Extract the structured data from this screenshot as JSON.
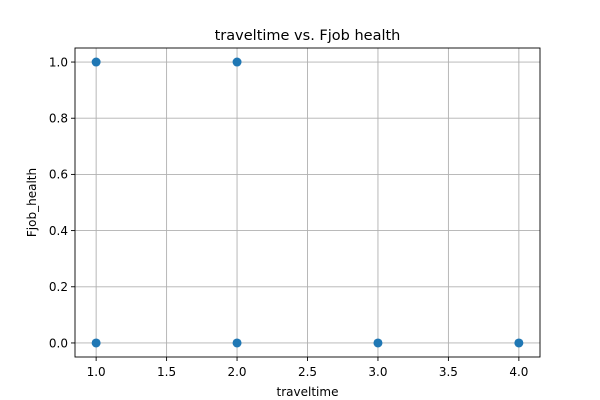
{
  "chart_data": {
    "type": "scatter",
    "title": "traveltime vs. Fjob health",
    "xlabel": "traveltime",
    "ylabel": "Fjob_health",
    "xlim": [
      0.85,
      4.15
    ],
    "ylim": [
      -0.05,
      1.05
    ],
    "xticks": [
      "1.0",
      "1.5",
      "2.0",
      "2.5",
      "3.0",
      "3.5",
      "4.0"
    ],
    "xtick_values": [
      1.0,
      1.5,
      2.0,
      2.5,
      3.0,
      3.5,
      4.0
    ],
    "yticks": [
      "0.0",
      "0.2",
      "0.4",
      "0.6",
      "0.8",
      "1.0"
    ],
    "ytick_values": [
      0.0,
      0.2,
      0.4,
      0.6,
      0.8,
      1.0
    ],
    "grid": true,
    "legend": "none",
    "points": [
      {
        "x": 1,
        "y": 1
      },
      {
        "x": 1,
        "y": 0
      },
      {
        "x": 2,
        "y": 1
      },
      {
        "x": 2,
        "y": 0
      },
      {
        "x": 3,
        "y": 0
      },
      {
        "x": 4,
        "y": 0
      }
    ],
    "colors": {
      "marker": "#1f77b4",
      "grid": "#b0b0b0",
      "axes": "#000000"
    }
  }
}
